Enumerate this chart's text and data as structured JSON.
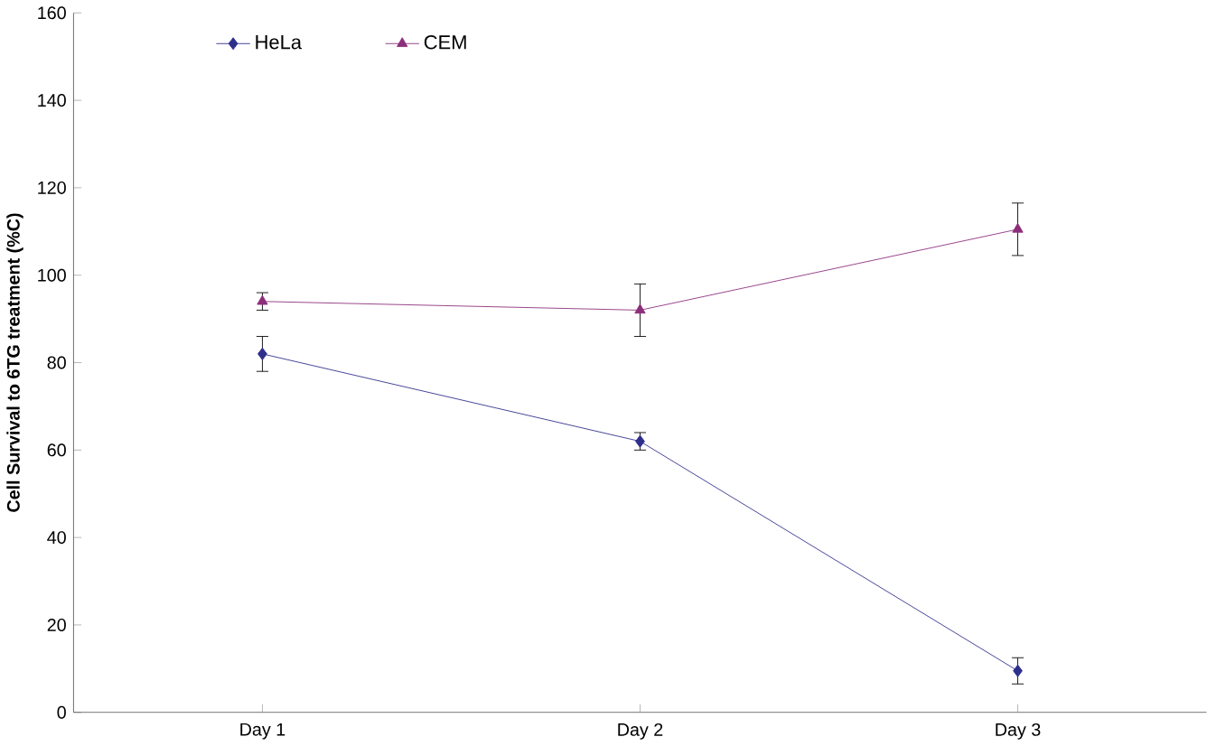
{
  "chart_data": {
    "type": "line",
    "ylabel": "Cell Survival to 6TG treatment (%C)",
    "categories": [
      "Day 1",
      "Day 2",
      "Day 3"
    ],
    "series": [
      {
        "name": "HeLa",
        "color": "#2e2e8c",
        "marker": "diamond",
        "values": [
          82,
          62,
          9.5
        ],
        "errors": [
          4,
          2,
          3
        ]
      },
      {
        "name": "CEM",
        "color": "#8c2e7a",
        "marker": "triangle",
        "values": [
          94,
          92,
          110.5
        ],
        "errors": [
          2,
          6,
          6
        ]
      }
    ],
    "ylim": [
      0,
      160
    ],
    "yticks": [
      0,
      20,
      40,
      60,
      80,
      100,
      120,
      140,
      160
    ],
    "grid": false,
    "legend": "top left"
  }
}
